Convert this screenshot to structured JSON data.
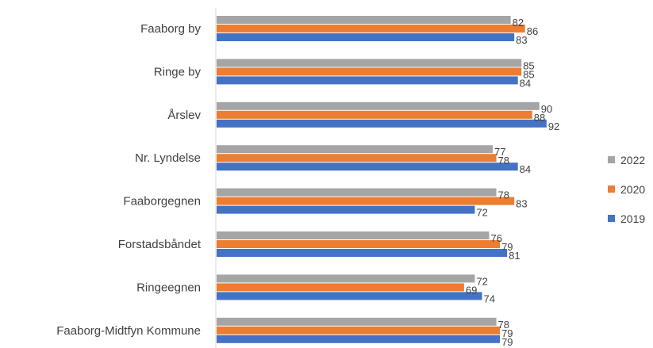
{
  "chart_data": {
    "type": "bar",
    "orientation": "horizontal",
    "title": "",
    "xlabel": "",
    "ylabel": "",
    "categories": [
      "Faaborg by",
      "Ringe by",
      "Årslev",
      "Nr. Lyndelse",
      "Faaborgegnen",
      "Forstadsbåndet",
      "Ringeegnen",
      "Faaborg-Midtfyn Kommune"
    ],
    "series": [
      {
        "name": "2022",
        "color": "#A5A5A5",
        "values": [
          82,
          85,
          90,
          77,
          78,
          76,
          72,
          78
        ]
      },
      {
        "name": "2020",
        "color": "#ED7D31",
        "values": [
          86,
          85,
          88,
          78,
          83,
          79,
          69,
          79
        ]
      },
      {
        "name": "2019",
        "color": "#4472C4",
        "values": [
          83,
          84,
          92,
          84,
          72,
          81,
          74,
          79
        ]
      }
    ],
    "xlim": [
      0,
      100
    ],
    "grid": false,
    "legend_position": "right"
  }
}
